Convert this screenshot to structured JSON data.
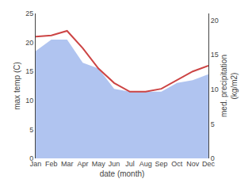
{
  "chart_data": {
    "type": "line",
    "categories": [
      "Jan",
      "Feb",
      "Mar",
      "Apr",
      "May",
      "Jun",
      "Jul",
      "Aug",
      "Sep",
      "Oct",
      "Nov",
      "Dec"
    ],
    "xlabel": "date (month)",
    "ylabel": "max temp (C)",
    "y2label": "med. precipitation\n(kg/m2)",
    "ylim": [
      0,
      25
    ],
    "yticks": [
      0,
      5,
      10,
      15,
      20,
      25
    ],
    "y2lim": [
      0,
      21
    ],
    "y2ticks": [
      0,
      5,
      10,
      15,
      20
    ],
    "grid": false,
    "series": [
      {
        "type": "area",
        "color": "#b0c4f0",
        "values": [
          18.5,
          20.5,
          20.5,
          16.5,
          15.5,
          12.0,
          11.5,
          11.5,
          11.5,
          13.0,
          13.5,
          14.5
        ]
      },
      {
        "type": "line",
        "color": "#cc4444",
        "values": [
          21.0,
          21.2,
          22.0,
          19.0,
          15.5,
          13.0,
          11.5,
          11.5,
          12.0,
          13.5,
          15.0,
          16.0
        ]
      }
    ]
  }
}
